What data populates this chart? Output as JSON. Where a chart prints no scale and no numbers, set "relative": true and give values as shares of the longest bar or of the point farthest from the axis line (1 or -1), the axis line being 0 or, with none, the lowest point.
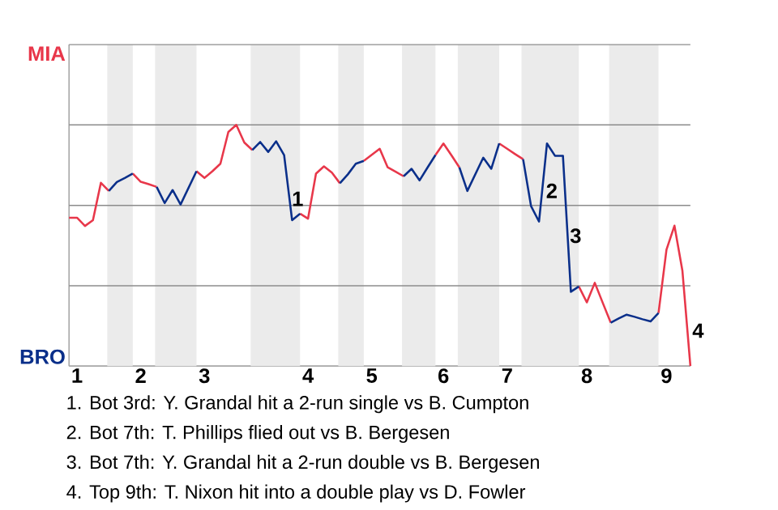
{
  "chart_data": {
    "type": "line",
    "categories": [
      null,
      "1",
      null,
      null,
      null,
      null,
      null,
      null,
      null,
      "2",
      null,
      null,
      null,
      null,
      null,
      null,
      null,
      "3",
      null,
      null,
      null,
      null,
      null,
      null,
      null,
      null,
      null,
      null,
      null,
      null,
      "4",
      null,
      null,
      null,
      null,
      null,
      null,
      null,
      "5",
      null,
      null,
      null,
      null,
      null,
      null,
      null,
      null,
      "6",
      null,
      null,
      null,
      null,
      null,
      null,
      null,
      "7",
      null,
      null,
      null,
      null,
      null,
      null,
      null,
      null,
      null,
      "8",
      null,
      null,
      null,
      null,
      null,
      null,
      null,
      null,
      null,
      "9",
      null,
      null,
      null
    ],
    "relative": true,
    "ref_lines": [
      {
        "axis": "y",
        "value": 0.333,
        "color": "#8c8c8c"
      },
      {
        "axis": "y",
        "value": 0.666,
        "color": "#8c8c8c"
      },
      {
        "axis": "y",
        "value": 1,
        "color": "#8c8c8c"
      },
      {
        "axis": "y",
        "value": 1.333,
        "color": "#8c8c8c"
      }
    ],
    "series": [
      {
        "color": "#e8374a",
        "values": [
          0.615,
          0.615,
          0.581,
          0.605,
          0.76,
          0.726,
          null,
          null,
          0.798,
          0.764,
          0.754,
          0.743,
          null,
          null,
          null,
          null,
          0.808,
          0.78,
          0.808,
          0.839,
          0.971,
          1,
          0.927,
          0.896,
          null,
          null,
          null,
          null,
          null,
          0.632,
          0.611,
          0.798,
          0.828,
          0.802,
          0.758,
          null,
          null,
          0.851,
          0.876,
          0.901,
          0.824,
          0.806,
          0.787,
          null,
          null,
          null,
          0.875,
          0.923,
          0.874,
          0.824,
          null,
          null,
          null,
          null,
          0.923,
          0.901,
          0.879,
          0.858,
          null,
          null,
          null,
          null,
          null,
          null,
          0.33,
          0.264,
          0.345,
          0.262,
          0.18,
          null,
          null,
          null,
          null,
          null,
          0.22,
          0.483,
          0.582,
          0.395,
          0
        ]
      },
      {
        "color": "#0a2f8a",
        "values": [
          null,
          null,
          null,
          null,
          null,
          0.726,
          0.763,
          0.78,
          0.798,
          null,
          null,
          0.743,
          0.676,
          0.73,
          0.67,
          0.739,
          0.808,
          null,
          null,
          null,
          null,
          null,
          null,
          0.896,
          0.929,
          0.888,
          0.932,
          0.875,
          0.605,
          0.632,
          null,
          null,
          null,
          null,
          0.758,
          0.795,
          0.839,
          0.851,
          null,
          null,
          null,
          null,
          0.787,
          0.818,
          0.77,
          0.823,
          0.875,
          null,
          null,
          0.824,
          0.726,
          0.795,
          0.864,
          0.818,
          0.923,
          null,
          null,
          0.858,
          0.663,
          0.599,
          0.923,
          0.872,
          0.872,
          0.308,
          0.33,
          null,
          null,
          null,
          0.18,
          0.197,
          0.213,
          0.204,
          0.194,
          0.185,
          0.22,
          null,
          null,
          null,
          null
        ]
      }
    ],
    "annotations": [
      "MIA",
      "BRO",
      "1",
      "2",
      "3",
      "4",
      "1. Bot 3rd: Y. Grandal hit a 2-run single vs B. Cumpton",
      "2. Bot 7th: T. Phillips flied out vs B. Bergesen",
      "3. Bot 7th: Y. Grandal hit a 2-run double vs B. Bergesen",
      "4. Top 9th: T. Nixon hit into a double play vs D. Fowler"
    ]
  }
}
